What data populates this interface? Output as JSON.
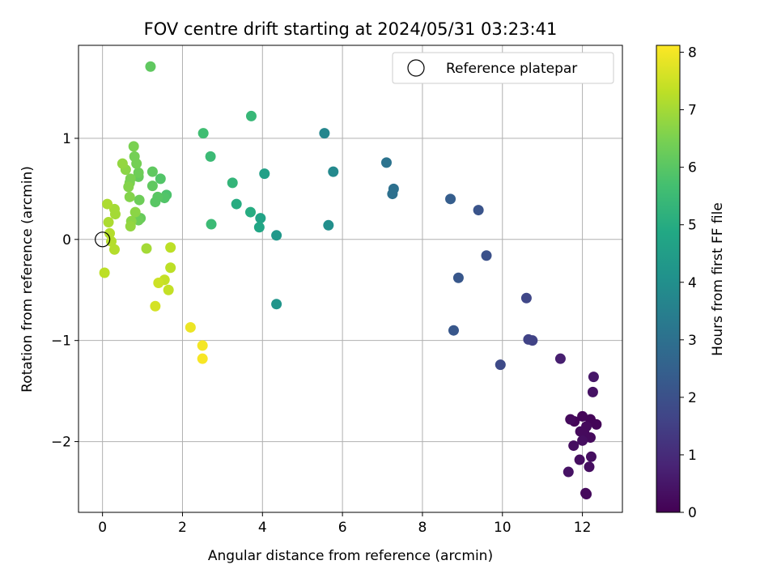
{
  "chart_data": {
    "type": "scatter",
    "title": "FOV centre drift starting at 2024/05/31 03:23:41",
    "xlabel": "Angular distance from reference (arcmin)",
    "ylabel": "Rotation from reference (arcmin)",
    "xlim": [
      -0.6,
      13.0
    ],
    "ylim": [
      -2.7,
      1.92
    ],
    "x_ticks": [
      0,
      2,
      4,
      6,
      8,
      10,
      12
    ],
    "y_ticks": [
      -2,
      -1,
      0,
      1
    ],
    "grid": true,
    "legend": {
      "position": "top-right",
      "label": "Reference platepar"
    },
    "reference_point": {
      "x": 0,
      "y": 0
    },
    "colorbar": {
      "label": "Hours from first FF file",
      "range": [
        0,
        8.12
      ],
      "ticks": [
        0,
        1,
        2,
        3,
        4,
        5,
        6,
        7,
        8
      ],
      "colormap": "viridis"
    },
    "series": [
      {
        "points": [
          {
            "x": 12.0,
            "y": -1.75,
            "c": 0.1
          },
          {
            "x": 11.8,
            "y": -1.8,
            "c": 0.1
          },
          {
            "x": 11.7,
            "y": -1.78,
            "c": 0.2
          },
          {
            "x": 12.2,
            "y": -1.78,
            "c": 0.1
          },
          {
            "x": 12.35,
            "y": -1.83,
            "c": 0.1
          },
          {
            "x": 12.1,
            "y": -1.85,
            "c": 0.2
          },
          {
            "x": 11.95,
            "y": -1.9,
            "c": 0.2
          },
          {
            "x": 12.05,
            "y": -1.92,
            "c": 0.2
          },
          {
            "x": 12.2,
            "y": -1.96,
            "c": 0.2
          },
          {
            "x": 12.0,
            "y": -1.99,
            "c": 0.3
          },
          {
            "x": 11.78,
            "y": -2.04,
            "c": 0.3
          },
          {
            "x": 11.93,
            "y": -2.18,
            "c": 0.3
          },
          {
            "x": 12.22,
            "y": -2.15,
            "c": 0.3
          },
          {
            "x": 12.17,
            "y": -2.25,
            "c": 0.3
          },
          {
            "x": 11.65,
            "y": -2.3,
            "c": 0.4
          },
          {
            "x": 12.1,
            "y": -2.52,
            "c": 0.2
          },
          {
            "x": 12.08,
            "y": -2.51,
            "c": 0.2
          },
          {
            "x": 12.28,
            "y": -1.36,
            "c": 0.5
          },
          {
            "x": 12.26,
            "y": -1.51,
            "c": 0.4
          },
          {
            "x": 11.45,
            "y": -1.18,
            "c": 0.7
          },
          {
            "x": 10.75,
            "y": -1.0,
            "c": 1.6
          },
          {
            "x": 10.65,
            "y": -0.99,
            "c": 1.6
          },
          {
            "x": 10.6,
            "y": -0.58,
            "c": 1.7
          },
          {
            "x": 9.95,
            "y": -1.24,
            "c": 1.8
          },
          {
            "x": 9.6,
            "y": -0.16,
            "c": 2.0
          },
          {
            "x": 9.4,
            "y": 0.29,
            "c": 2.1
          },
          {
            "x": 8.9,
            "y": -0.38,
            "c": 2.2
          },
          {
            "x": 8.78,
            "y": -0.9,
            "c": 2.2
          },
          {
            "x": 8.7,
            "y": 0.4,
            "c": 2.4
          },
          {
            "x": 7.28,
            "y": 0.5,
            "c": 3.0
          },
          {
            "x": 7.25,
            "y": 0.45,
            "c": 3.0
          },
          {
            "x": 7.1,
            "y": 0.76,
            "c": 3.1
          },
          {
            "x": 5.77,
            "y": 0.67,
            "c": 3.8
          },
          {
            "x": 5.55,
            "y": 1.05,
            "c": 3.7
          },
          {
            "x": 5.65,
            "y": 0.14,
            "c": 4.0
          },
          {
            "x": 4.35,
            "y": 0.04,
            "c": 4.3
          },
          {
            "x": 4.35,
            "y": -0.64,
            "c": 4.2
          },
          {
            "x": 4.05,
            "y": 0.65,
            "c": 4.6
          },
          {
            "x": 3.95,
            "y": 0.21,
            "c": 4.7
          },
          {
            "x": 3.92,
            "y": 0.12,
            "c": 4.8
          },
          {
            "x": 3.7,
            "y": 0.27,
            "c": 5.0
          },
          {
            "x": 3.72,
            "y": 1.22,
            "c": 5.4
          },
          {
            "x": 3.35,
            "y": 0.35,
            "c": 5.0
          },
          {
            "x": 3.25,
            "y": 0.56,
            "c": 5.3
          },
          {
            "x": 2.72,
            "y": 0.15,
            "c": 5.5
          },
          {
            "x": 2.7,
            "y": 0.82,
            "c": 5.5
          },
          {
            "x": 2.52,
            "y": 1.05,
            "c": 5.6
          },
          {
            "x": 1.2,
            "y": 1.71,
            "c": 6.1
          },
          {
            "x": 1.6,
            "y": 0.44,
            "c": 5.8
          },
          {
            "x": 1.55,
            "y": 0.41,
            "c": 5.9
          },
          {
            "x": 1.45,
            "y": 0.6,
            "c": 5.9
          },
          {
            "x": 1.38,
            "y": 0.42,
            "c": 6.0
          },
          {
            "x": 1.32,
            "y": 0.37,
            "c": 6.0
          },
          {
            "x": 1.25,
            "y": 0.67,
            "c": 6.1
          },
          {
            "x": 1.25,
            "y": 0.53,
            "c": 6.1
          },
          {
            "x": 0.95,
            "y": 0.21,
            "c": 6.2
          },
          {
            "x": 0.9,
            "y": 0.19,
            "c": 6.3
          },
          {
            "x": 0.92,
            "y": 0.39,
            "c": 6.3
          },
          {
            "x": 0.9,
            "y": 0.62,
            "c": 6.2
          },
          {
            "x": 0.9,
            "y": 0.66,
            "c": 6.3
          },
          {
            "x": 0.85,
            "y": 0.75,
            "c": 6.4
          },
          {
            "x": 0.8,
            "y": 0.82,
            "c": 6.4
          },
          {
            "x": 0.78,
            "y": 0.92,
            "c": 6.5
          },
          {
            "x": 0.7,
            "y": 0.6,
            "c": 6.5
          },
          {
            "x": 0.68,
            "y": 0.56,
            "c": 6.5
          },
          {
            "x": 0.68,
            "y": 0.42,
            "c": 6.6
          },
          {
            "x": 0.65,
            "y": 0.52,
            "c": 6.6
          },
          {
            "x": 0.58,
            "y": 0.69,
            "c": 6.7
          },
          {
            "x": 0.5,
            "y": 0.75,
            "c": 6.8
          },
          {
            "x": 0.82,
            "y": 0.27,
            "c": 6.7
          },
          {
            "x": 0.72,
            "y": 0.18,
            "c": 6.7
          },
          {
            "x": 0.7,
            "y": 0.13,
            "c": 6.8
          },
          {
            "x": 0.3,
            "y": 0.3,
            "c": 7.0
          },
          {
            "x": 0.32,
            "y": 0.25,
            "c": 7.0
          },
          {
            "x": 0.12,
            "y": 0.35,
            "c": 7.1
          },
          {
            "x": 0.15,
            "y": 0.17,
            "c": 7.1
          },
          {
            "x": 0.18,
            "y": 0.06,
            "c": 7.2
          },
          {
            "x": 0.22,
            "y": -0.02,
            "c": 7.2
          },
          {
            "x": 0.3,
            "y": -0.1,
            "c": 7.2
          },
          {
            "x": 0.05,
            "y": -0.33,
            "c": 7.3
          },
          {
            "x": 1.1,
            "y": -0.09,
            "c": 7.0
          },
          {
            "x": 1.7,
            "y": -0.08,
            "c": 7.3
          },
          {
            "x": 1.7,
            "y": -0.28,
            "c": 7.3
          },
          {
            "x": 1.65,
            "y": -0.5,
            "c": 7.4
          },
          {
            "x": 1.55,
            "y": -0.4,
            "c": 7.4
          },
          {
            "x": 1.4,
            "y": -0.43,
            "c": 7.5
          },
          {
            "x": 1.32,
            "y": -0.66,
            "c": 7.6
          },
          {
            "x": 2.2,
            "y": -0.87,
            "c": 7.9
          },
          {
            "x": 2.5,
            "y": -1.05,
            "c": 8.0
          },
          {
            "x": 2.5,
            "y": -1.18,
            "c": 8.05
          }
        ]
      }
    ]
  }
}
